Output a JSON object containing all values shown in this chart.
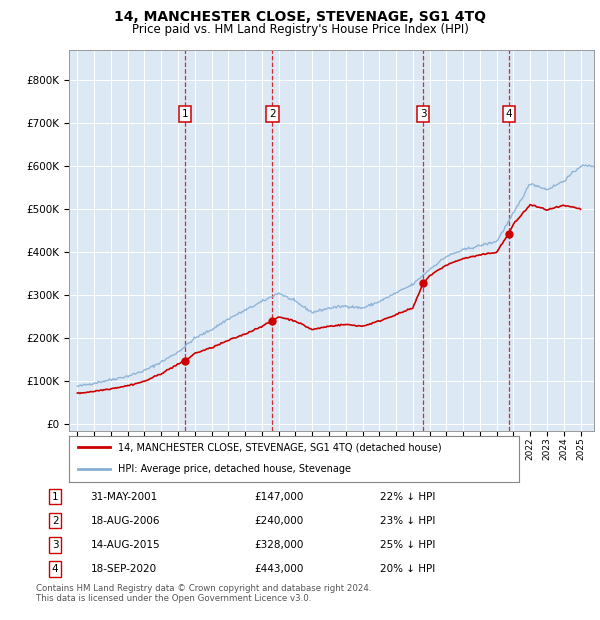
{
  "title": "14, MANCHESTER CLOSE, STEVENAGE, SG1 4TQ",
  "subtitle": "Price paid vs. HM Land Registry's House Price Index (HPI)",
  "property_line_color": "#cc0000",
  "hpi_line_color": "#88afd4",
  "background_color": "#ffffff",
  "plot_bg_color": "#dce9f5",
  "y_ticks": [
    0,
    100000,
    200000,
    300000,
    400000,
    500000,
    600000,
    700000,
    800000
  ],
  "y_tick_labels": [
    "£0",
    "£100K",
    "£200K",
    "£300K",
    "£400K",
    "£500K",
    "£600K",
    "£700K",
    "£800K"
  ],
  "sales": [
    {
      "num": 1,
      "date_x": 2001.42,
      "price": 147000,
      "label": "31-MAY-2001",
      "pct": "22%"
    },
    {
      "num": 2,
      "date_x": 2006.63,
      "price": 240000,
      "label": "18-AUG-2006",
      "pct": "23%"
    },
    {
      "num": 3,
      "date_x": 2015.62,
      "price": 328000,
      "label": "14-AUG-2015",
      "pct": "25%"
    },
    {
      "num": 4,
      "date_x": 2020.72,
      "price": 443000,
      "label": "18-SEP-2020",
      "pct": "20%"
    }
  ],
  "legend_property": "14, MANCHESTER CLOSE, STEVENAGE, SG1 4TQ (detached house)",
  "legend_hpi": "HPI: Average price, detached house, Stevenage",
  "footer": "Contains HM Land Registry data © Crown copyright and database right 2024.\nThis data is licensed under the Open Government Licence v3.0.",
  "xlim_min": 1994.5,
  "xlim_max": 2025.8,
  "ylim_min": -15000,
  "ylim_max": 870000,
  "hpi_years": [
    1995,
    1996,
    1997,
    1998,
    1999,
    2000,
    2001,
    2002,
    2003,
    2004,
    2005,
    2006,
    2007,
    2008,
    2009,
    2010,
    2011,
    2012,
    2013,
    2014,
    2015,
    2016,
    2017,
    2018,
    2019,
    2020,
    2021,
    2022,
    2023,
    2024,
    2025
  ],
  "hpi_values": [
    88000,
    96000,
    104000,
    112000,
    125000,
    145000,
    168000,
    200000,
    220000,
    245000,
    265000,
    285000,
    305000,
    285000,
    260000,
    270000,
    275000,
    270000,
    285000,
    305000,
    325000,
    360000,
    390000,
    405000,
    415000,
    425000,
    490000,
    560000,
    545000,
    565000,
    600000
  ],
  "prop_years": [
    1995,
    1996,
    1997,
    1998,
    1999,
    2000,
    2001,
    2001.42,
    2002,
    2003,
    2004,
    2005,
    2006,
    2006.63,
    2007,
    2008,
    2009,
    2010,
    2011,
    2012,
    2013,
    2014,
    2015,
    2015.62,
    2016,
    2017,
    2018,
    2019,
    2020,
    2020.72,
    2021,
    2022,
    2023,
    2024,
    2025
  ],
  "prop_values": [
    72000,
    77000,
    83000,
    90000,
    100000,
    118000,
    140000,
    147000,
    165000,
    178000,
    195000,
    210000,
    228000,
    240000,
    250000,
    240000,
    220000,
    228000,
    232000,
    228000,
    240000,
    255000,
    270000,
    328000,
    345000,
    370000,
    385000,
    393000,
    400000,
    443000,
    465000,
    510000,
    498000,
    508000,
    500000
  ]
}
